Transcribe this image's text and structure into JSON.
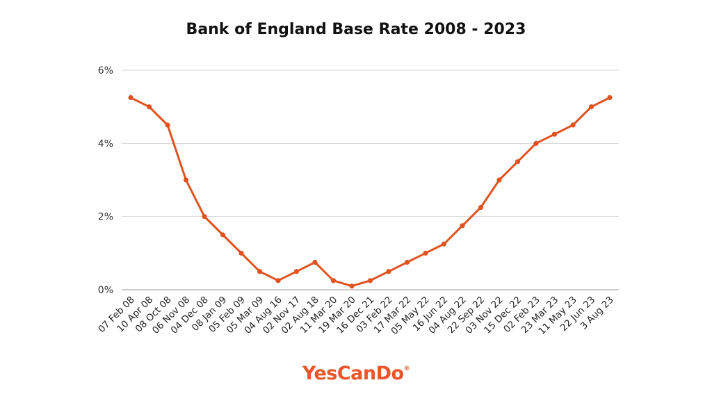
{
  "chart_data": {
    "type": "line",
    "title": "Bank of England Base Rate 2008 - 2023",
    "xlabel": "",
    "ylabel": "",
    "ylim": [
      0,
      6
    ],
    "y_ticks": [
      "0%",
      "2%",
      "4%",
      "6%"
    ],
    "y_tick_values": [
      0,
      2,
      4,
      6
    ],
    "grid": true,
    "line_color": "#e0521f",
    "categories": [
      "07 Feb 08",
      "10 Apr 08",
      "08 Oct 08",
      "06 Nov 08",
      "04 Dec 08",
      "08 Jan 09",
      "05 Feb 09",
      "05 Mar 09",
      "04 Aug 16",
      "02 Nov 17",
      "02 Aug 18",
      "11 Mar 20",
      "19 Mar 20",
      "16 Dec 21",
      "03 Feb 22",
      "17 Mar 22",
      "05 May 22",
      "16 Jun 22",
      "04 Aug 22",
      "22 Sep 22",
      "03 Nov 22",
      "15 Dec 22",
      "02 Feb 23",
      "23 Mar 23",
      "11 May 23",
      "22 Jun 23",
      "3 Aug 23"
    ],
    "values": [
      5.25,
      5.0,
      4.5,
      3.0,
      2.0,
      1.5,
      1.0,
      0.5,
      0.25,
      0.5,
      0.75,
      0.25,
      0.1,
      0.25,
      0.5,
      0.75,
      1.0,
      1.25,
      1.75,
      2.25,
      3.0,
      3.5,
      4.0,
      4.25,
      4.5,
      5.0,
      5.25
    ]
  },
  "branding": {
    "logo_text": "YesCanDo",
    "logo_mark": "®",
    "logo_color": "#e8562a"
  }
}
